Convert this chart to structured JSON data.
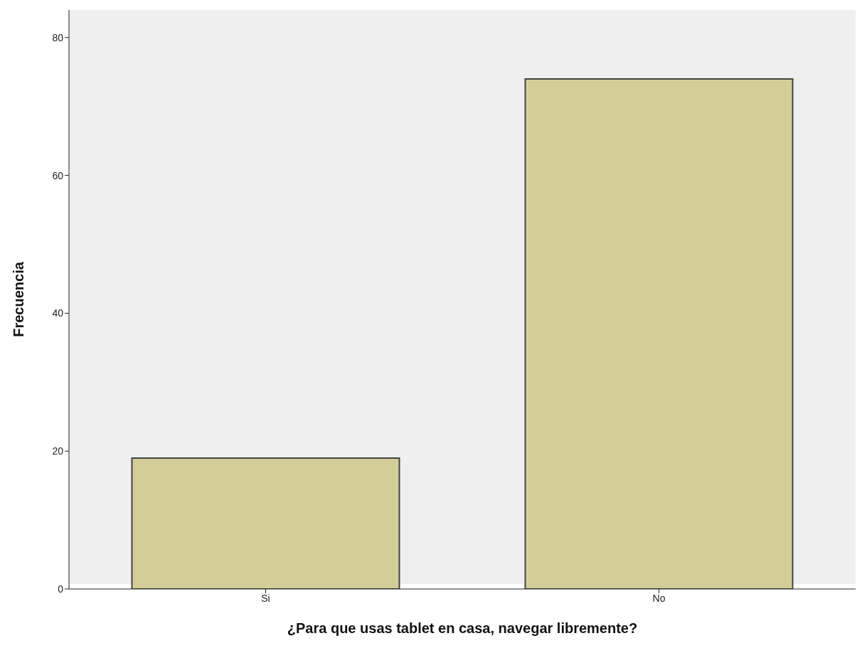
{
  "chart_data": {
    "type": "bar",
    "xlabel": "¿Para que usas tablet en casa, navegar libremente?",
    "ylabel": "Frecuencia",
    "categories": [
      "Si",
      "No"
    ],
    "values": [
      19,
      74
    ],
    "color": "#d3ce97",
    "ylim": [
      0,
      84
    ],
    "yticks": [
      0,
      20,
      40,
      60,
      80
    ],
    "grid": false
  }
}
